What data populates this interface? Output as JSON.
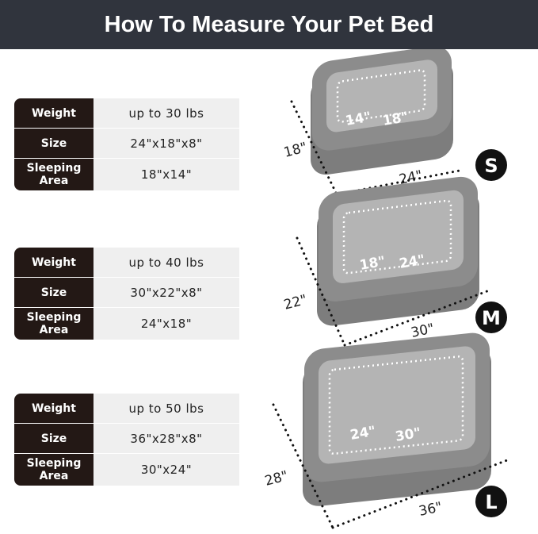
{
  "title": "How To Measure Your Pet Bed",
  "sizes": [
    {
      "badge": "S",
      "weight_label": "Weight",
      "weight": "up to 30 lbs",
      "size_label": "Size",
      "size": "24\"x18\"x8\"",
      "area_label": "Sleeping Area",
      "area": "18\"x14\"",
      "width": "24\"",
      "depth": "18\"",
      "inner_depth": "14\"",
      "inner_width": "18\""
    },
    {
      "badge": "M",
      "weight_label": "Weight",
      "weight": "up to 40 lbs",
      "size_label": "Size",
      "size": "30\"x22\"x8\"",
      "area_label": "Sleeping Area",
      "area": "24\"x18\"",
      "width": "30\"",
      "depth": "22\"",
      "inner_depth": "18\"",
      "inner_width": "24\""
    },
    {
      "badge": "L",
      "weight_label": "Weight",
      "weight": "up to 50 lbs",
      "size_label": "Size",
      "size": "36\"x28\"x8\"",
      "area_label": "Sleeping Area",
      "area": "30\"x24\"",
      "width": "36\"",
      "depth": "28\"",
      "inner_depth": "24\"",
      "inner_width": "30\""
    }
  ],
  "colors": {
    "header": "#30343d",
    "label_bg": "#231815",
    "value_bg": "#efefef",
    "bed": "#8c8c8c",
    "bed_inner": "#b4b4b4"
  }
}
